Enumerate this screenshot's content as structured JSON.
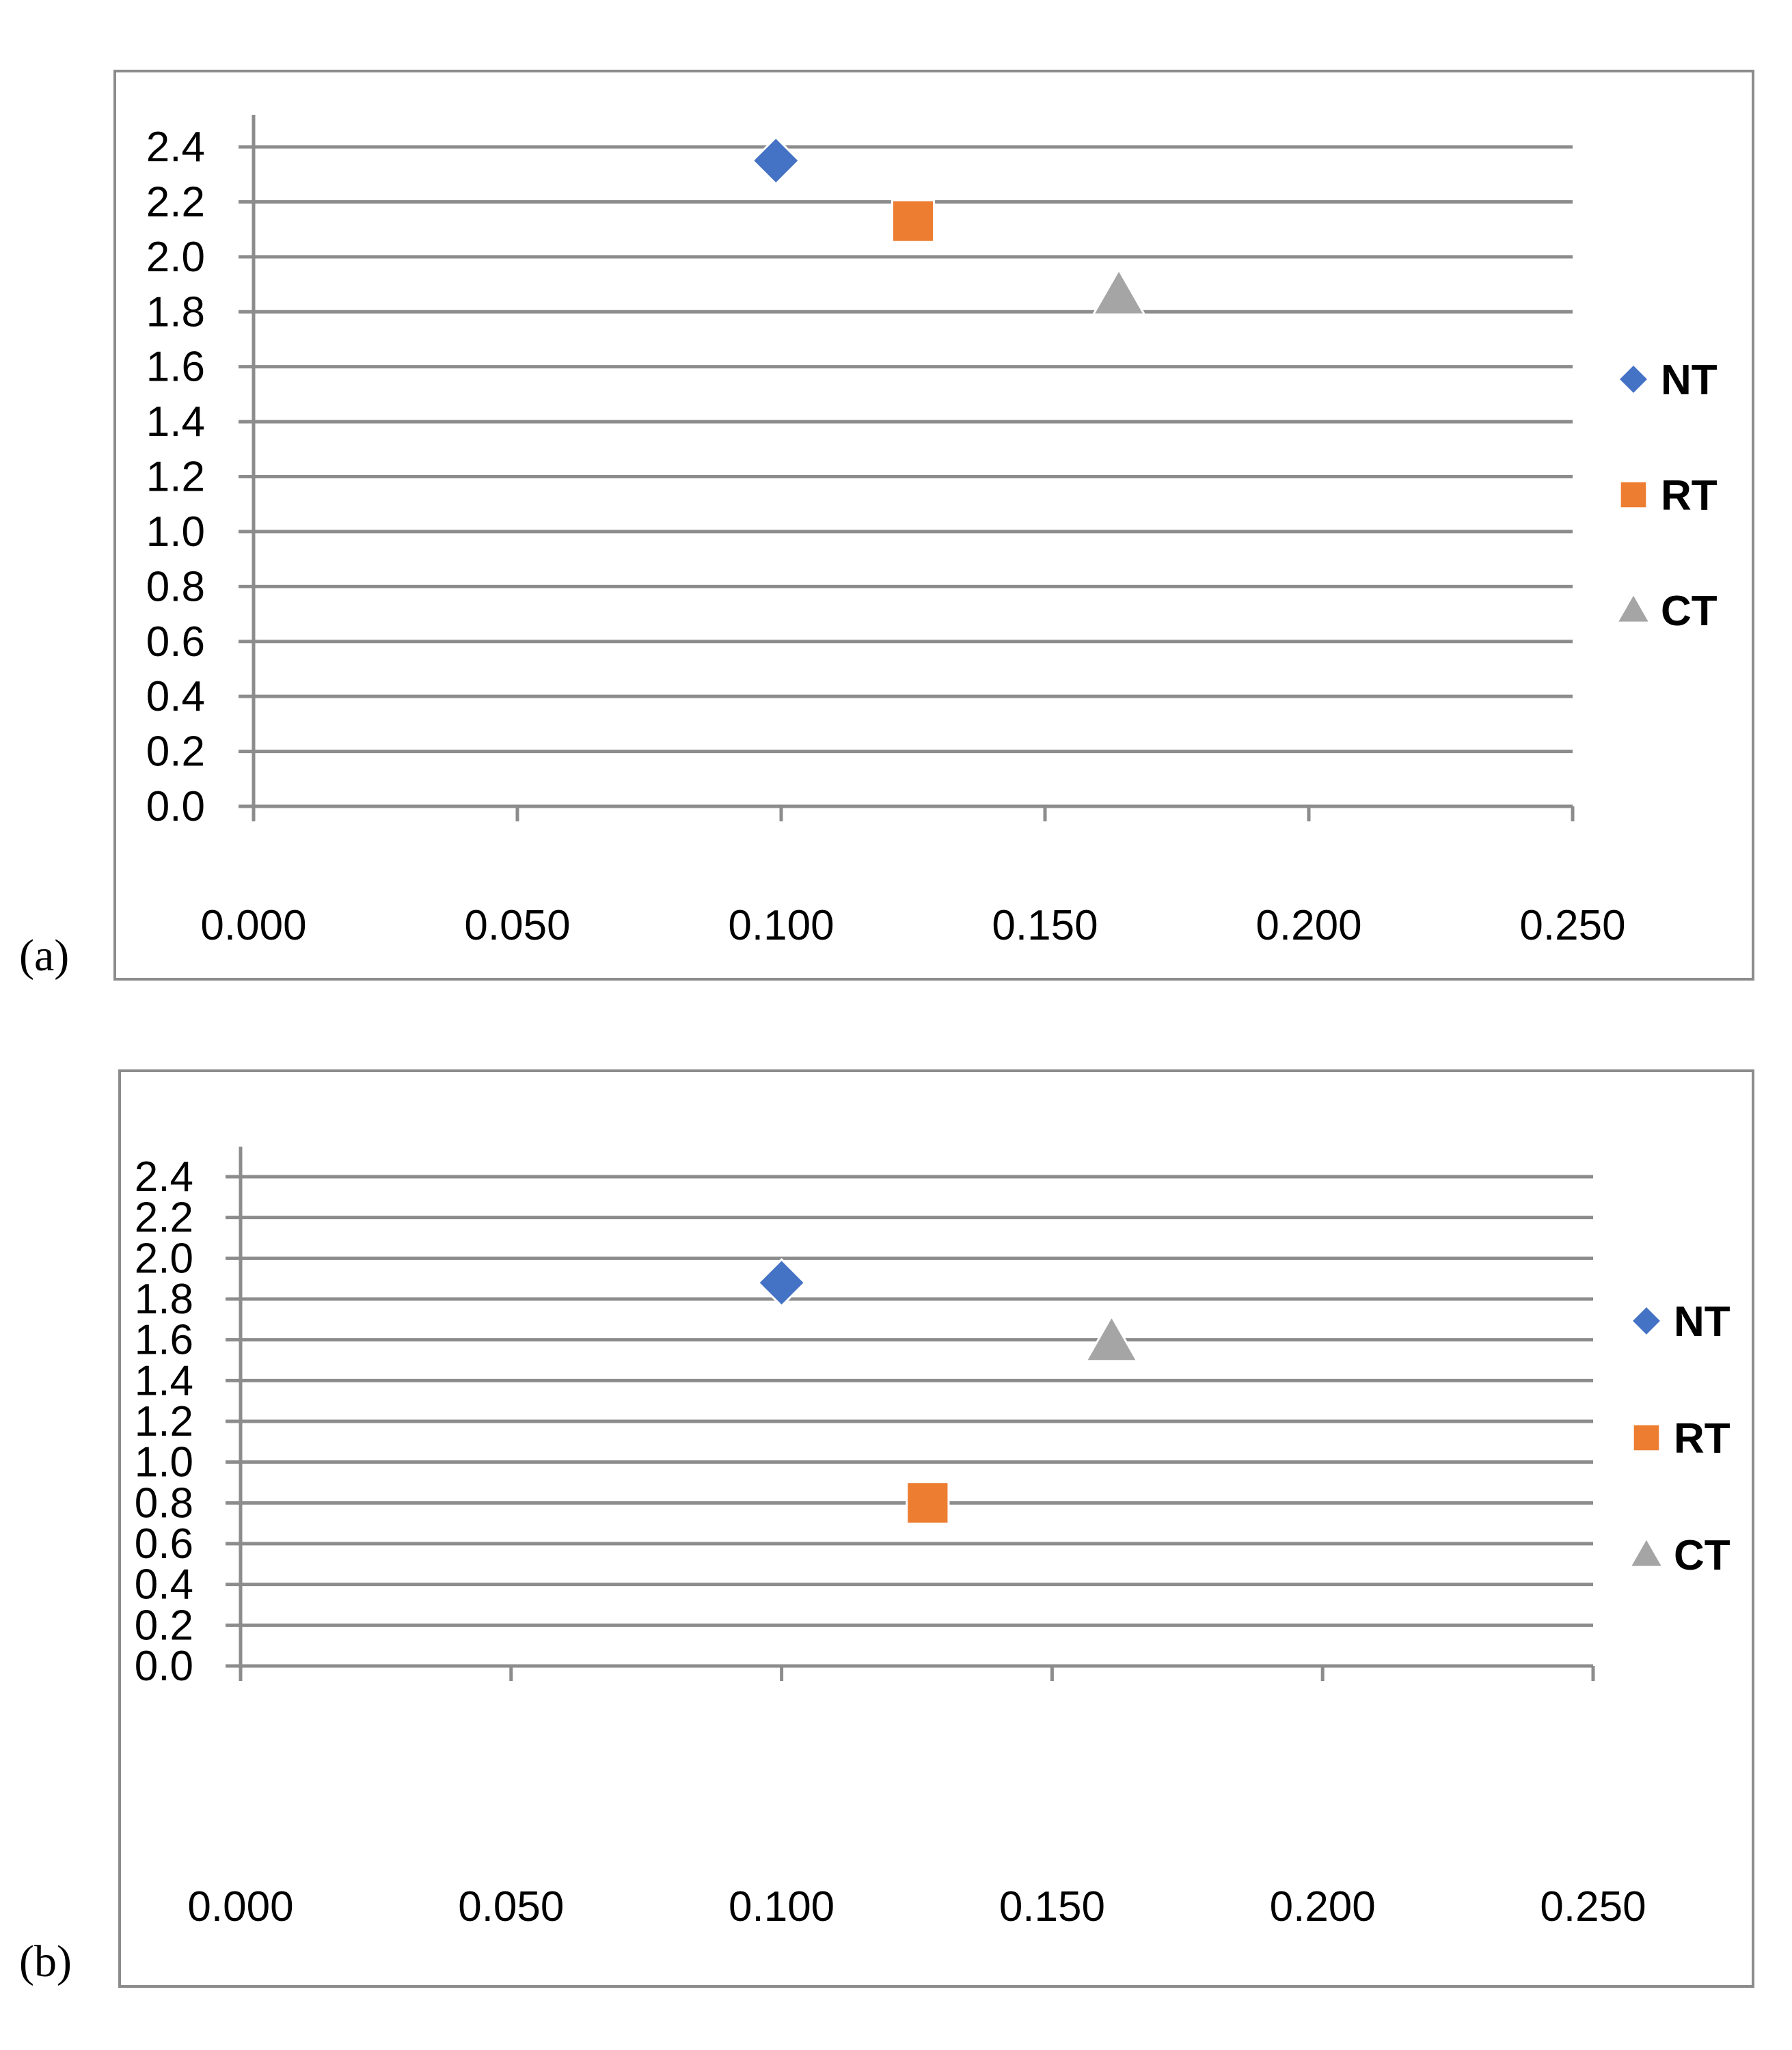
{
  "chart_data": [
    {
      "type": "scatter",
      "panel_label": "(a)",
      "title": "",
      "xlabel": "",
      "ylabel": "",
      "xlim": [
        0,
        0.25
      ],
      "ylim": [
        0,
        2.4
      ],
      "x_ticks": [
        "0.000",
        "0.050",
        "0.100",
        "0.150",
        "0.200",
        "0.250"
      ],
      "y_ticks": [
        "0.0",
        "0.2",
        "0.4",
        "0.6",
        "0.8",
        "1.0",
        "1.2",
        "1.4",
        "1.6",
        "1.8",
        "2.0",
        "2.2",
        "2.4"
      ],
      "grid": "horizontal",
      "legend_position": "right",
      "series": [
        {
          "name": "NT",
          "marker": "diamond",
          "color": "#4472C4",
          "points": [
            {
              "x": 0.099,
              "y": 2.35
            }
          ]
        },
        {
          "name": "RT",
          "marker": "square",
          "color": "#ED7D31",
          "points": [
            {
              "x": 0.125,
              "y": 2.13
            }
          ]
        },
        {
          "name": "CT",
          "marker": "triangle",
          "color": "#A5A5A5",
          "points": [
            {
              "x": 0.164,
              "y": 1.86
            }
          ]
        }
      ]
    },
    {
      "type": "scatter",
      "panel_label": "(b)",
      "title": "",
      "xlabel": "",
      "ylabel": "",
      "xlim": [
        0,
        0.25
      ],
      "ylim": [
        0,
        2.4
      ],
      "x_ticks": [
        "0.000",
        "0.050",
        "0.100",
        "0.150",
        "0.200",
        "0.250"
      ],
      "y_ticks": [
        "0.0",
        "0.2",
        "0.4",
        "0.6",
        "0.8",
        "1.0",
        "1.2",
        "1.4",
        "1.6",
        "1.8",
        "2.0",
        "2.2",
        "2.4"
      ],
      "grid": "horizontal",
      "legend_position": "right",
      "series": [
        {
          "name": "NT",
          "marker": "diamond",
          "color": "#4472C4",
          "points": [
            {
              "x": 0.1,
              "y": 1.88
            }
          ]
        },
        {
          "name": "RT",
          "marker": "square",
          "color": "#ED7D31",
          "points": [
            {
              "x": 0.127,
              "y": 0.8
            }
          ]
        },
        {
          "name": "CT",
          "marker": "triangle",
          "color": "#A5A5A5",
          "points": [
            {
              "x": 0.161,
              "y": 1.59
            }
          ]
        }
      ]
    }
  ]
}
